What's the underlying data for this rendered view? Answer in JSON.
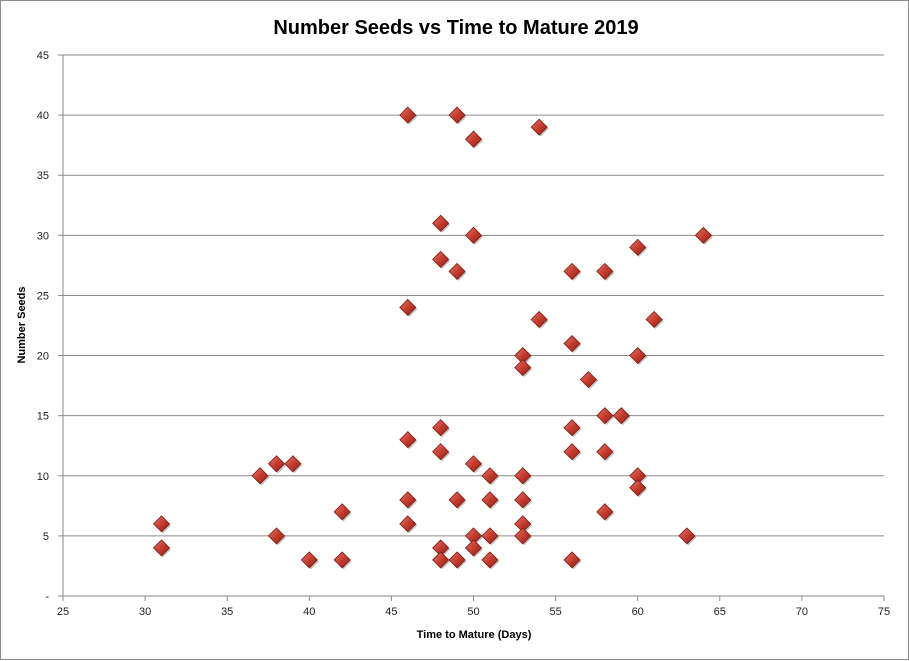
{
  "chart_data": {
    "type": "scatter",
    "title": "Number Seeds vs Time to Mature 2019",
    "xlabel": "Time to Mature (Days)",
    "ylabel": "Number Seeds",
    "xlim": [
      25,
      75
    ],
    "ylim": [
      0,
      45
    ],
    "x_ticks": [
      "25",
      "30",
      "35",
      "40",
      "45",
      "50",
      "55",
      "60",
      "65",
      "70",
      "75"
    ],
    "y_ticks": [
      "-",
      "5",
      "10",
      "15",
      "20",
      "25",
      "30",
      "35",
      "40",
      "45"
    ],
    "grid": "horizontal",
    "legend": "none",
    "marker": "diamond",
    "marker_color": "#c0392b",
    "points": [
      {
        "x": 31,
        "y": 6
      },
      {
        "x": 31,
        "y": 4
      },
      {
        "x": 37,
        "y": 10
      },
      {
        "x": 38,
        "y": 11
      },
      {
        "x": 38,
        "y": 5
      },
      {
        "x": 39,
        "y": 11
      },
      {
        "x": 40,
        "y": 3
      },
      {
        "x": 42,
        "y": 7
      },
      {
        "x": 42,
        "y": 3
      },
      {
        "x": 46,
        "y": 40
      },
      {
        "x": 46,
        "y": 24
      },
      {
        "x": 46,
        "y": 13
      },
      {
        "x": 46,
        "y": 8
      },
      {
        "x": 46,
        "y": 6
      },
      {
        "x": 48,
        "y": 31
      },
      {
        "x": 48,
        "y": 28
      },
      {
        "x": 48,
        "y": 14
      },
      {
        "x": 48,
        "y": 12
      },
      {
        "x": 48,
        "y": 4
      },
      {
        "x": 48,
        "y": 3
      },
      {
        "x": 49,
        "y": 40
      },
      {
        "x": 49,
        "y": 27
      },
      {
        "x": 49,
        "y": 8
      },
      {
        "x": 49,
        "y": 3
      },
      {
        "x": 50,
        "y": 38
      },
      {
        "x": 50,
        "y": 30
      },
      {
        "x": 50,
        "y": 11
      },
      {
        "x": 50,
        "y": 5
      },
      {
        "x": 50,
        "y": 4
      },
      {
        "x": 51,
        "y": 10
      },
      {
        "x": 51,
        "y": 8
      },
      {
        "x": 51,
        "y": 5
      },
      {
        "x": 51,
        "y": 3
      },
      {
        "x": 53,
        "y": 20
      },
      {
        "x": 53,
        "y": 19
      },
      {
        "x": 53,
        "y": 10
      },
      {
        "x": 53,
        "y": 8
      },
      {
        "x": 53,
        "y": 6
      },
      {
        "x": 53,
        "y": 5
      },
      {
        "x": 54,
        "y": 39
      },
      {
        "x": 54,
        "y": 23
      },
      {
        "x": 56,
        "y": 27
      },
      {
        "x": 56,
        "y": 21
      },
      {
        "x": 56,
        "y": 14
      },
      {
        "x": 56,
        "y": 12
      },
      {
        "x": 56,
        "y": 3
      },
      {
        "x": 57,
        "y": 18
      },
      {
        "x": 58,
        "y": 27
      },
      {
        "x": 58,
        "y": 15
      },
      {
        "x": 58,
        "y": 12
      },
      {
        "x": 58,
        "y": 7
      },
      {
        "x": 59,
        "y": 15
      },
      {
        "x": 60,
        "y": 29
      },
      {
        "x": 60,
        "y": 20
      },
      {
        "x": 60,
        "y": 10
      },
      {
        "x": 60,
        "y": 9
      },
      {
        "x": 61,
        "y": 23
      },
      {
        "x": 63,
        "y": 5
      },
      {
        "x": 64,
        "y": 30
      }
    ]
  }
}
